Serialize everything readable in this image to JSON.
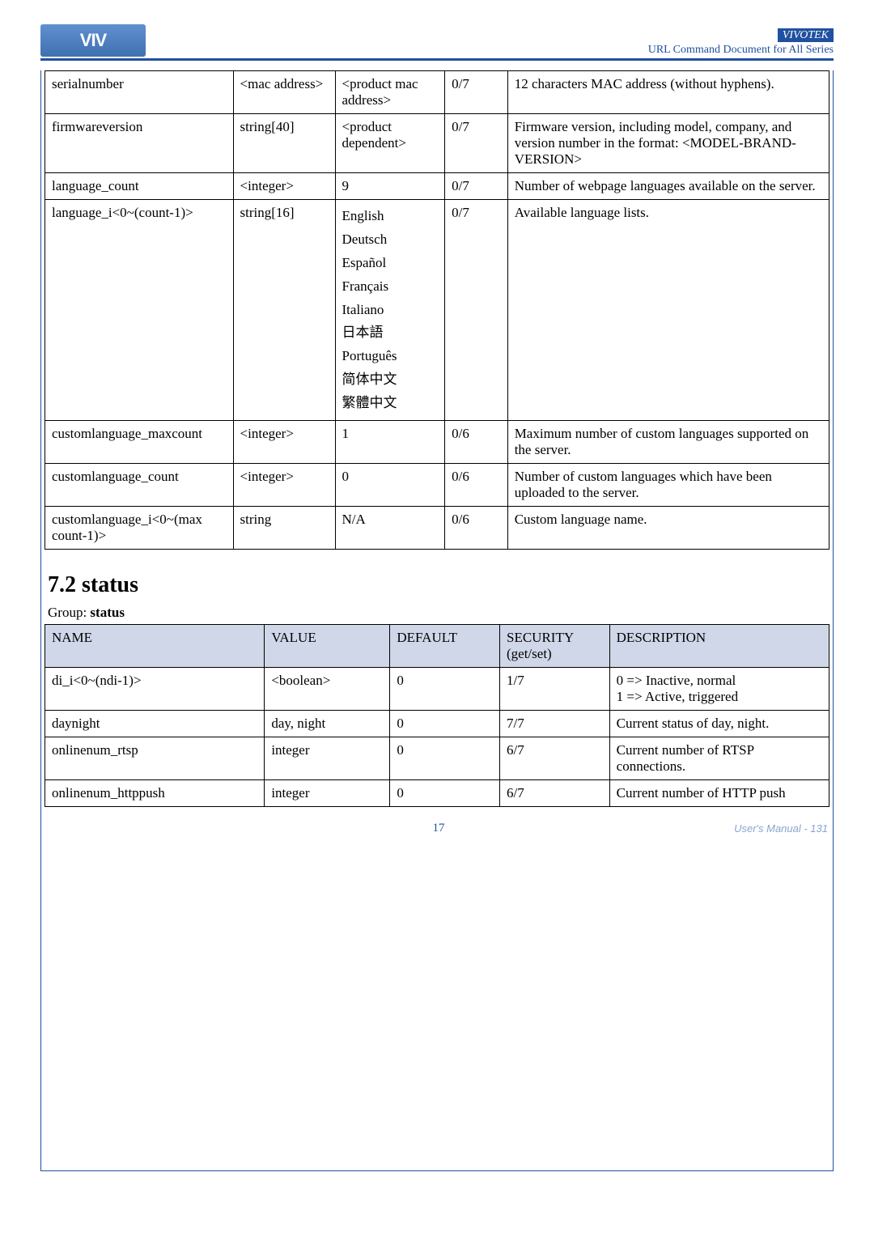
{
  "header": {
    "brand": "VIVOTEK",
    "subtitle": "URL Command Document for All Series",
    "logo_text": "VIV"
  },
  "paramTable": {
    "rows": [
      {
        "name": "serialnumber",
        "value": "<mac address>",
        "default": "<product mac address>",
        "security": "0/7",
        "desc": "12 characters MAC address (without hyphens)."
      },
      {
        "name": "firmwareversion",
        "value": "string[40]",
        "default": "<product dependent>",
        "security": "0/7",
        "desc": "Firmware version, including model, company, and version number in the format: <MODEL-BRAND-VERSION>"
      },
      {
        "name": "language_count",
        "value": "<integer>",
        "default": "9",
        "security": "0/7",
        "desc": "Number of webpage languages available on the server."
      },
      {
        "name": "language_i<0~(count-1)>",
        "value": "string[16]",
        "default_list": [
          "English",
          "Deutsch",
          "Español",
          "Français",
          "Italiano",
          "日本語",
          "Português",
          "简体中文",
          "繁體中文"
        ],
        "security": "0/7",
        "desc": "Available language lists."
      },
      {
        "name": "customlanguage_maxcount",
        "value": "<integer>",
        "default": "1",
        "security": "0/6",
        "desc": "Maximum number of custom languages supported on the server."
      },
      {
        "name": "customlanguage_count",
        "value": "<integer>",
        "default": "0",
        "security": "0/6",
        "desc": "Number of custom languages which have been uploaded to the server."
      },
      {
        "name": "customlanguage_i<0~(max count-1)>",
        "value": "string",
        "default": "N/A",
        "security": "0/6",
        "desc": "Custom language name."
      }
    ]
  },
  "statusSection": {
    "title": "7.2 status",
    "groupLabel": "Group:",
    "groupName": "status",
    "headers": {
      "name": "NAME",
      "value": "VALUE",
      "default": "DEFAULT",
      "security": "SECURITY (get/set)",
      "desc": "DESCRIPTION"
    },
    "rows": [
      {
        "name": "di_i<0~(ndi-1)>",
        "value": "<boolean>",
        "default": "0",
        "security": "1/7",
        "desc": "0 => Inactive, normal\n1 => Active, triggered"
      },
      {
        "name": "daynight",
        "value": "day, night",
        "default": "0",
        "security": "7/7",
        "desc": "Current status of day, night."
      },
      {
        "name": "onlinenum_rtsp",
        "value": "integer",
        "default": "0",
        "security": "6/7",
        "desc": "Current number of RTSP connections."
      },
      {
        "name": "onlinenum_httppush",
        "value": "integer",
        "default": "0",
        "security": "6/7",
        "desc": "Current number of HTTP push"
      }
    ]
  },
  "footer": {
    "pageNum": "17",
    "manual": "User's Manual - 131"
  }
}
